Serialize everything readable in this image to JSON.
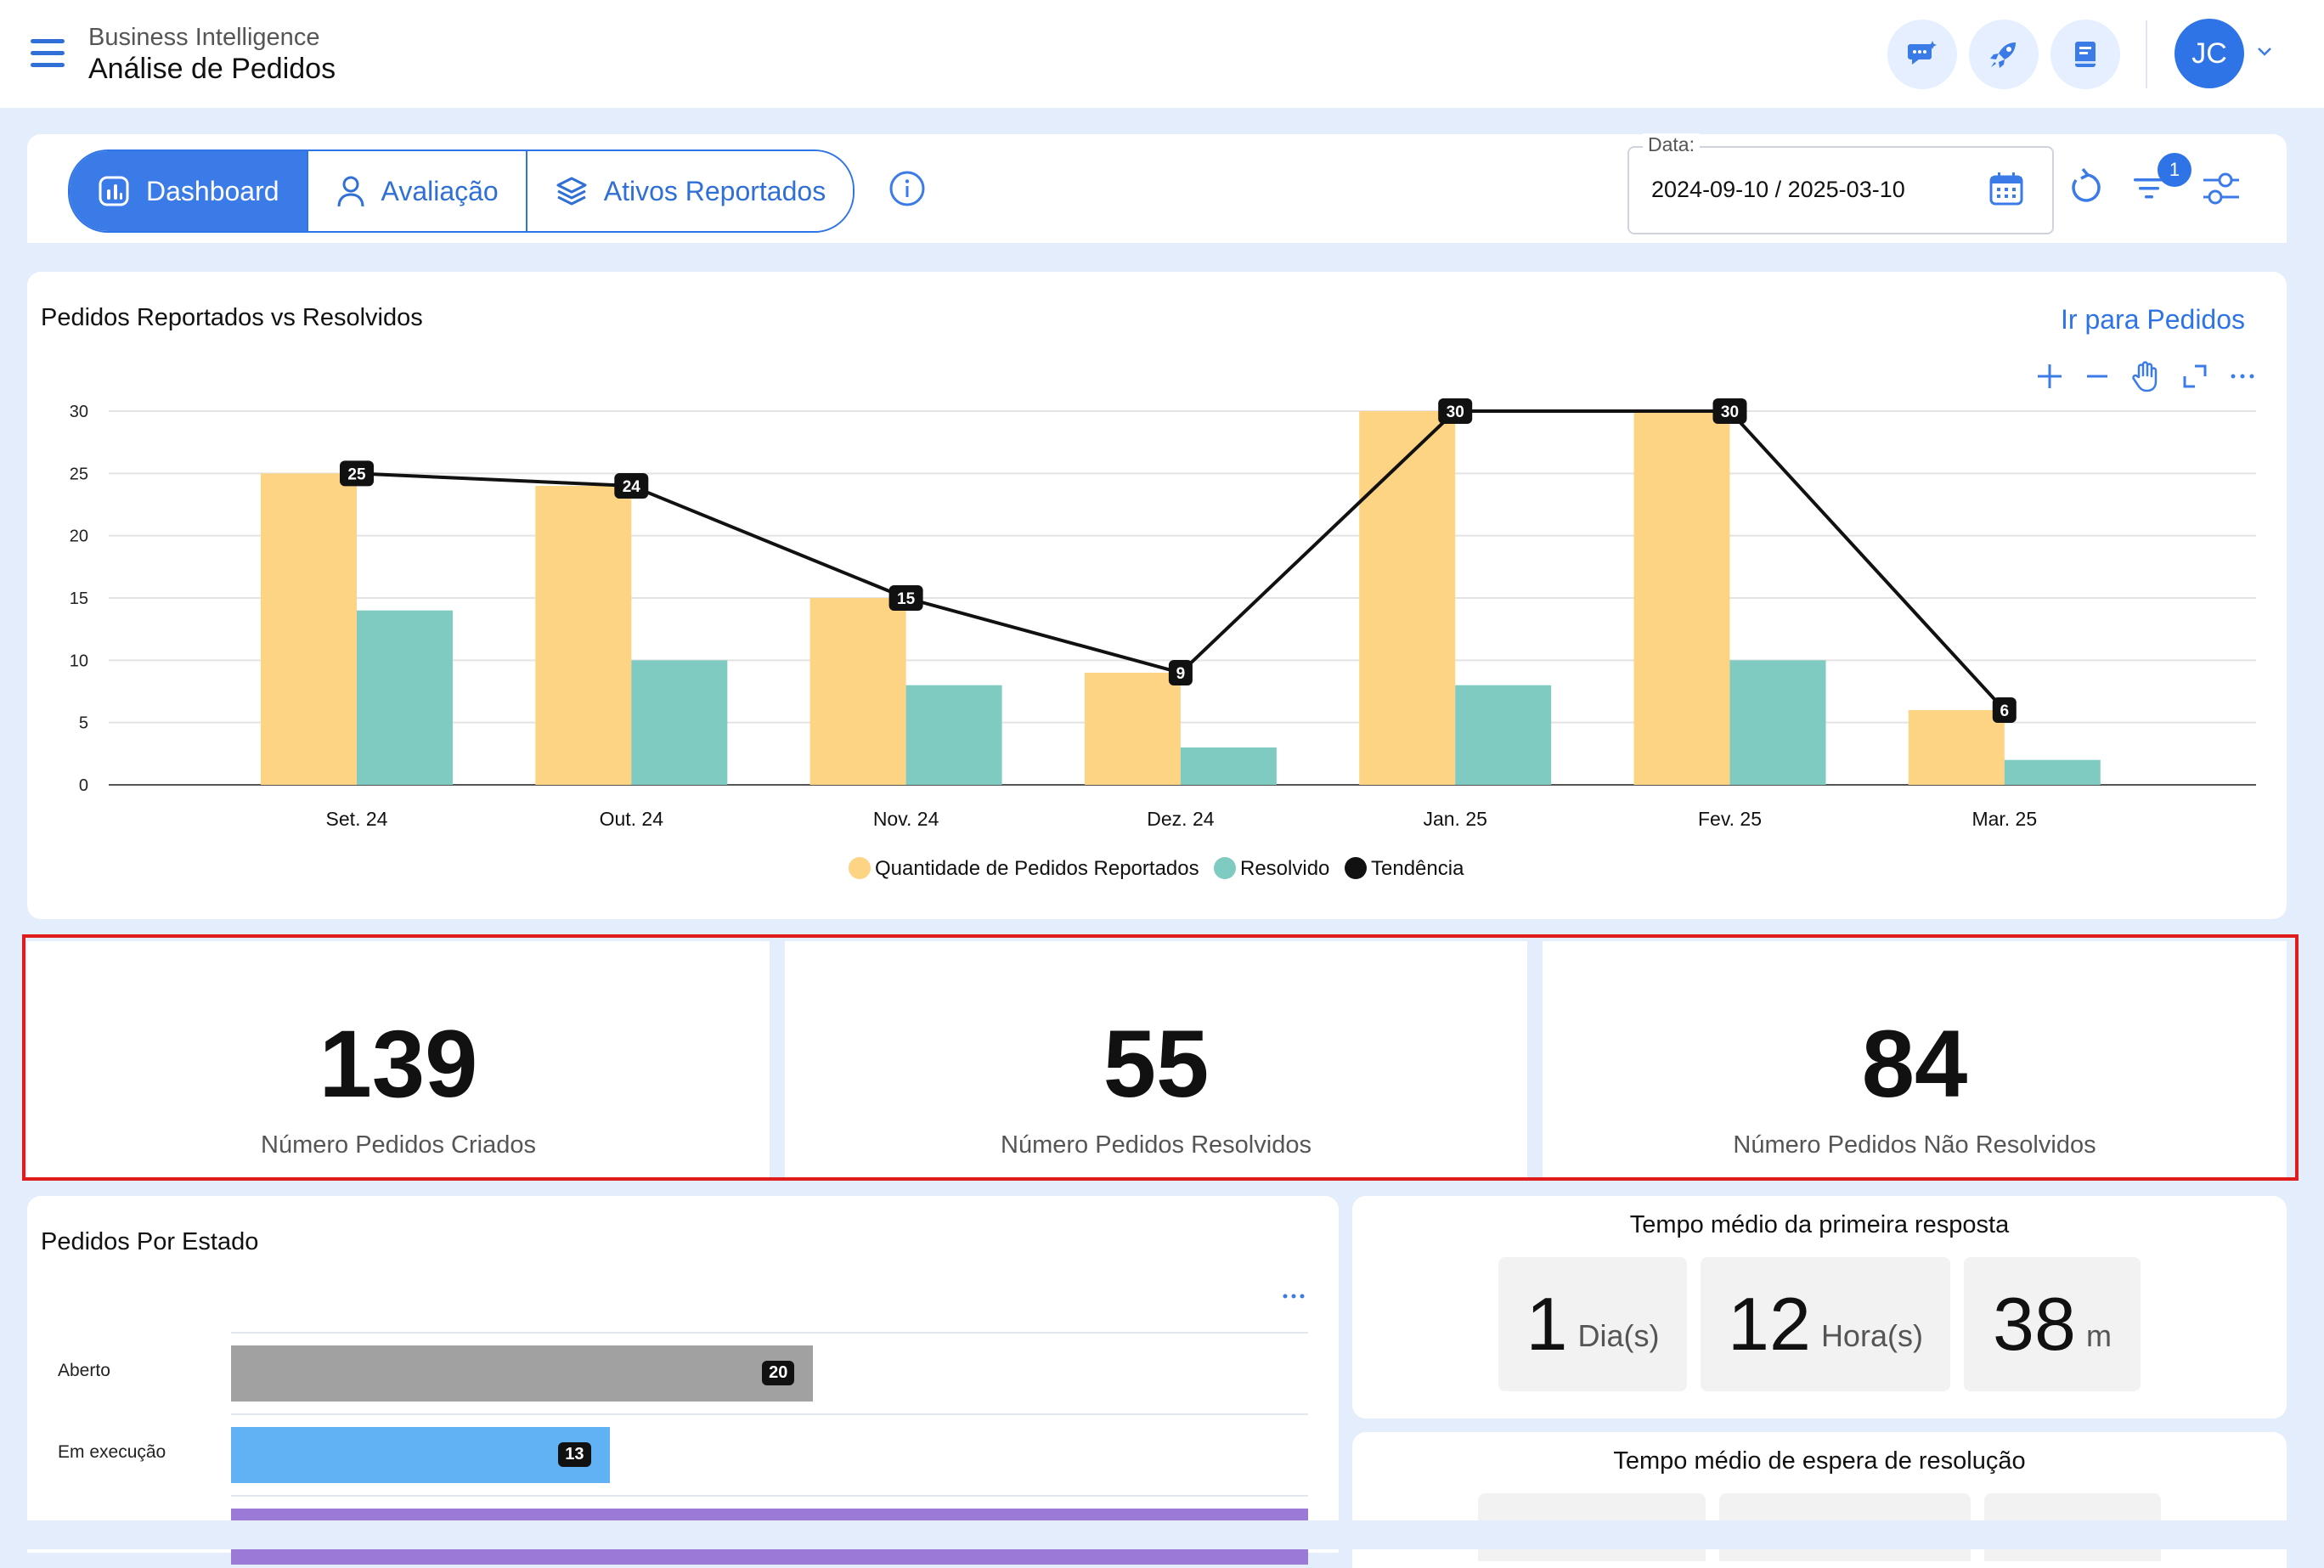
{
  "header": {
    "subtitle": "Business Intelligence",
    "title": "Análise de Pedidos",
    "avatar_initials": "JC"
  },
  "tabs": [
    {
      "label": "Dashboard",
      "active": true
    },
    {
      "label": "Avaliação",
      "active": false
    },
    {
      "label": "Ativos Reportados",
      "active": false
    }
  ],
  "date_filter": {
    "label": "Data:",
    "value": "2024-09-10 / 2025-03-10"
  },
  "filter_badge": "1",
  "chart_panel": {
    "title": "Pedidos Reportados vs Resolvidos",
    "link": "Ir para Pedidos"
  },
  "chart_data": {
    "type": "bar",
    "title": "Pedidos Reportados vs Resolvidos",
    "categories": [
      "Set. 24",
      "Out. 24",
      "Nov. 24",
      "Dez. 24",
      "Jan. 25",
      "Fev. 25",
      "Mar. 25"
    ],
    "ylim": [
      0,
      30
    ],
    "yticks": [
      "0",
      "5",
      "10",
      "15",
      "20",
      "25",
      "30"
    ],
    "grid": true,
    "legend_position": "bottom",
    "series": [
      {
        "name": "Quantidade de Pedidos Reportados",
        "type": "bar",
        "color": "#fdd384",
        "values": [
          25,
          24,
          15,
          9,
          30,
          30,
          6
        ]
      },
      {
        "name": "Resolvido",
        "type": "bar",
        "color": "#80cbc1",
        "values": [
          14,
          10,
          8,
          3,
          8,
          10,
          2
        ]
      },
      {
        "name": "Tendência",
        "type": "line",
        "color": "#111111",
        "values": [
          25,
          24,
          15,
          9,
          30,
          30,
          6
        ],
        "labels": [
          "25",
          "24",
          "15",
          "9",
          "30",
          "30",
          "6"
        ]
      }
    ]
  },
  "kpis": [
    {
      "value": "139",
      "label": "Número Pedidos Criados"
    },
    {
      "value": "55",
      "label": "Número Pedidos Resolvidos"
    },
    {
      "value": "84",
      "label": "Número Pedidos Não Resolvidos"
    }
  ],
  "state_panel": {
    "title": "Pedidos Por Estado",
    "rows": [
      {
        "label": "Aberto",
        "value": 20,
        "badge": "20",
        "color": "#a1a1a1"
      },
      {
        "label": "Em execução",
        "value": 13,
        "badge": "13",
        "color": "#61b2f5"
      }
    ],
    "max": 37,
    "third_bar_color": "#9a7ad6"
  },
  "first_response": {
    "title": "Tempo médio da primeira resposta",
    "days": "1",
    "days_unit": "Dia(s)",
    "hours": "12",
    "hours_unit": "Hora(s)",
    "minutes": "38",
    "minutes_unit": "m"
  },
  "resolution_wait": {
    "title": "Tempo médio de espera de resolução"
  }
}
